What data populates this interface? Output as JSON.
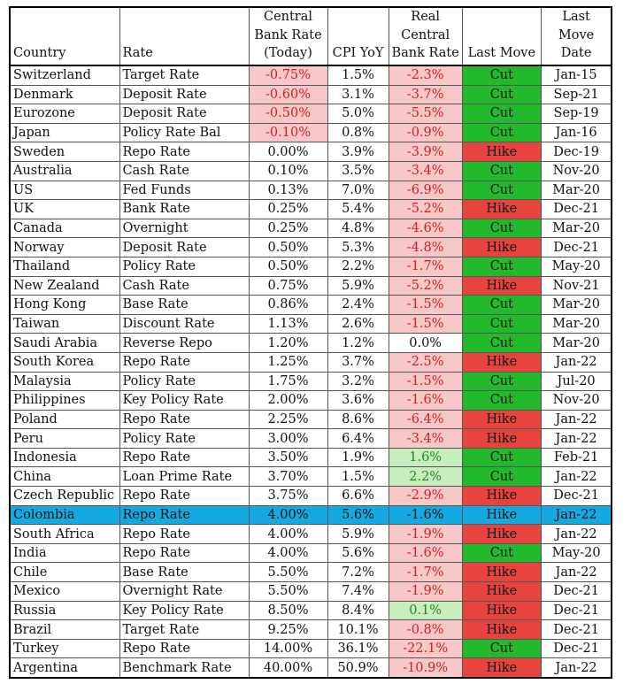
{
  "headers": [
    {
      "lines": [
        "Country"
      ],
      "align": "left"
    },
    {
      "lines": [
        "Rate"
      ],
      "align": "left"
    },
    {
      "lines": [
        "Central",
        "Bank Rate",
        "(Today)"
      ],
      "align": "center"
    },
    {
      "lines": [
        "CPI YoY"
      ],
      "align": "center"
    },
    {
      "lines": [
        "Real",
        "Central",
        "Bank Rate"
      ],
      "align": "center"
    },
    {
      "lines": [
        "Last Move"
      ],
      "align": "center"
    },
    {
      "lines": [
        "Last",
        "Move",
        "Date"
      ],
      "align": "center"
    }
  ],
  "highlight_country": "Colombia",
  "colors": {
    "negative_bg": "#f8c8c8",
    "negative_text": "#d21f1f",
    "positive_bg": "#c8eec0",
    "positive_text": "#1b8a1b",
    "cut": "#22ba2c",
    "hike": "#e8443f",
    "highlight": "#14a9e0"
  },
  "rows": [
    {
      "country": "Switzerland",
      "rate": "Target Rate",
      "cb_rate": "-0.75%",
      "cpi": "1.5%",
      "real": "-2.3%",
      "move": "Cut",
      "date": "Jan-15"
    },
    {
      "country": "Denmark",
      "rate": "Deposit Rate",
      "cb_rate": "-0.60%",
      "cpi": "3.1%",
      "real": "-3.7%",
      "move": "Cut",
      "date": "Sep-21"
    },
    {
      "country": "Eurozone",
      "rate": "Deposit Rate",
      "cb_rate": "-0.50%",
      "cpi": "5.0%",
      "real": "-5.5%",
      "move": "Cut",
      "date": "Sep-19"
    },
    {
      "country": "Japan",
      "rate": "Policy Rate Bal",
      "cb_rate": "-0.10%",
      "cpi": "0.8%",
      "real": "-0.9%",
      "move": "Cut",
      "date": "Jan-16"
    },
    {
      "country": "Sweden",
      "rate": "Repo Rate",
      "cb_rate": "0.00%",
      "cpi": "3.9%",
      "real": "-3.9%",
      "move": "Hike",
      "date": "Dec-19"
    },
    {
      "country": "Australia",
      "rate": "Cash Rate",
      "cb_rate": "0.10%",
      "cpi": "3.5%",
      "real": "-3.4%",
      "move": "Cut",
      "date": "Nov-20"
    },
    {
      "country": "US",
      "rate": "Fed Funds",
      "cb_rate": "0.13%",
      "cpi": "7.0%",
      "real": "-6.9%",
      "move": "Cut",
      "date": "Mar-20"
    },
    {
      "country": "UK",
      "rate": "Bank Rate",
      "cb_rate": "0.25%",
      "cpi": "5.4%",
      "real": "-5.2%",
      "move": "Hike",
      "date": "Dec-21"
    },
    {
      "country": "Canada",
      "rate": "Overnight",
      "cb_rate": "0.25%",
      "cpi": "4.8%",
      "real": "-4.6%",
      "move": "Cut",
      "date": "Mar-20"
    },
    {
      "country": "Norway",
      "rate": "Deposit Rate",
      "cb_rate": "0.50%",
      "cpi": "5.3%",
      "real": "-4.8%",
      "move": "Hike",
      "date": "Dec-21"
    },
    {
      "country": "Thailand",
      "rate": "Policy Rate",
      "cb_rate": "0.50%",
      "cpi": "2.2%",
      "real": "-1.7%",
      "move": "Cut",
      "date": "May-20"
    },
    {
      "country": "New Zealand",
      "rate": "Cash Rate",
      "cb_rate": "0.75%",
      "cpi": "5.9%",
      "real": "-5.2%",
      "move": "Hike",
      "date": "Nov-21"
    },
    {
      "country": "Hong Kong",
      "rate": "Base Rate",
      "cb_rate": "0.86%",
      "cpi": "2.4%",
      "real": "-1.5%",
      "move": "Cut",
      "date": "Mar-20"
    },
    {
      "country": "Taiwan",
      "rate": "Discount Rate",
      "cb_rate": "1.13%",
      "cpi": "2.6%",
      "real": "-1.5%",
      "move": "Cut",
      "date": "Mar-20"
    },
    {
      "country": "Saudi Arabia",
      "rate": "Reverse Repo",
      "cb_rate": "1.20%",
      "cpi": "1.2%",
      "real": "0.0%",
      "move": "Cut",
      "date": "Mar-20"
    },
    {
      "country": "South Korea",
      "rate": "Repo Rate",
      "cb_rate": "1.25%",
      "cpi": "3.7%",
      "real": "-2.5%",
      "move": "Hike",
      "date": "Jan-22"
    },
    {
      "country": "Malaysia",
      "rate": "Policy Rate",
      "cb_rate": "1.75%",
      "cpi": "3.2%",
      "real": "-1.5%",
      "move": "Cut",
      "date": "Jul-20"
    },
    {
      "country": "Philippines",
      "rate": "Key Policy Rate",
      "cb_rate": "2.00%",
      "cpi": "3.6%",
      "real": "-1.6%",
      "move": "Cut",
      "date": "Nov-20"
    },
    {
      "country": "Poland",
      "rate": "Repo Rate",
      "cb_rate": "2.25%",
      "cpi": "8.6%",
      "real": "-6.4%",
      "move": "Hike",
      "date": "Jan-22"
    },
    {
      "country": "Peru",
      "rate": "Policy Rate",
      "cb_rate": "3.00%",
      "cpi": "6.4%",
      "real": "-3.4%",
      "move": "Hike",
      "date": "Jan-22"
    },
    {
      "country": "Indonesia",
      "rate": "Repo Rate",
      "cb_rate": "3.50%",
      "cpi": "1.9%",
      "real": "1.6%",
      "move": "Cut",
      "date": "Feb-21"
    },
    {
      "country": "China",
      "rate": "Loan Prime Rate",
      "cb_rate": "3.70%",
      "cpi": "1.5%",
      "real": "2.2%",
      "move": "Cut",
      "date": "Jan-22"
    },
    {
      "country": "Czech Republic",
      "rate": "Repo Rate",
      "cb_rate": "3.75%",
      "cpi": "6.6%",
      "real": "-2.9%",
      "move": "Hike",
      "date": "Dec-21"
    },
    {
      "country": "Colombia",
      "rate": "Repo Rate",
      "cb_rate": "4.00%",
      "cpi": "5.6%",
      "real": "-1.6%",
      "move": "Hike",
      "date": "Jan-22"
    },
    {
      "country": "South Africa",
      "rate": "Repo Rate",
      "cb_rate": "4.00%",
      "cpi": "5.9%",
      "real": "-1.9%",
      "move": "Hike",
      "date": "Jan-22"
    },
    {
      "country": "India",
      "rate": "Repo Rate",
      "cb_rate": "4.00%",
      "cpi": "5.6%",
      "real": "-1.6%",
      "move": "Cut",
      "date": "May-20"
    },
    {
      "country": "Chile",
      "rate": "Base Rate",
      "cb_rate": "5.50%",
      "cpi": "7.2%",
      "real": "-1.7%",
      "move": "Hike",
      "date": "Jan-22"
    },
    {
      "country": "Mexico",
      "rate": "Overnight Rate",
      "cb_rate": "5.50%",
      "cpi": "7.4%",
      "real": "-1.9%",
      "move": "Hike",
      "date": "Dec-21"
    },
    {
      "country": "Russia",
      "rate": "Key Policy Rate",
      "cb_rate": "8.50%",
      "cpi": "8.4%",
      "real": "0.1%",
      "move": "Hike",
      "date": "Dec-21"
    },
    {
      "country": "Brazil",
      "rate": "Target Rate",
      "cb_rate": "9.25%",
      "cpi": "10.1%",
      "real": "-0.8%",
      "move": "Hike",
      "date": "Dec-21"
    },
    {
      "country": "Turkey",
      "rate": "Repo Rate",
      "cb_rate": "14.00%",
      "cpi": "36.1%",
      "real": "-22.1%",
      "move": "Cut",
      "date": "Dec-21"
    },
    {
      "country": "Argentina",
      "rate": "Benchmark Rate",
      "cb_rate": "40.00%",
      "cpi": "50.9%",
      "real": "-10.9%",
      "move": "Hike",
      "date": "Jan-22"
    }
  ]
}
